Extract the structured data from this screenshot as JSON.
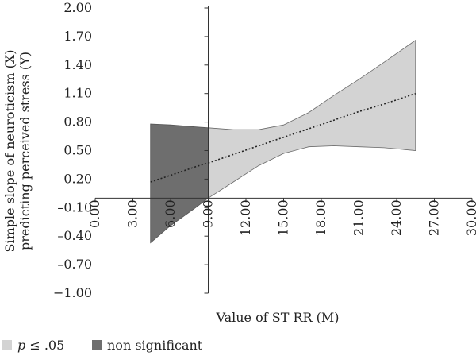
{
  "chart_data": {
    "type": "area",
    "title": "",
    "xlabel": "Value of ST RR (M)",
    "ylabel_lines": [
      "Simple slope of neuroticism (X)",
      "predicting perceived stress (Y)"
    ],
    "xlim": [
      0,
      30
    ],
    "ylim": [
      -1.0,
      2.0
    ],
    "x_ticks": [
      "0.00",
      "3.00",
      "6.00",
      "9.00",
      "12.00",
      "15.00",
      "18.00",
      "21.00",
      "24.00",
      "27.00",
      "30.00"
    ],
    "x_tick_values": [
      0,
      3,
      6,
      9,
      12,
      15,
      18,
      21,
      24,
      27,
      30
    ],
    "y_ticks": [
      "2.00",
      "1.70",
      "1.40",
      "1.10",
      "0.80",
      "0.50",
      "0.20",
      "–0.10",
      "–0.40",
      "–0.70",
      "−1.00"
    ],
    "y_tick_values": [
      2.0,
      1.7,
      1.4,
      1.1,
      0.8,
      0.5,
      0.2,
      -0.1,
      -0.4,
      -0.7,
      -1.0
    ],
    "axis_cross": {
      "x_axis_at_y": 0.0,
      "y_axis_at_x": 9.0
    },
    "x": [
      4.4,
      6,
      8,
      9,
      11,
      13,
      15,
      17,
      19,
      21,
      23,
      25.5
    ],
    "series": [
      {
        "role": "estimate",
        "style": "dotted",
        "color": "#222222",
        "values": [
          0.17,
          0.24,
          0.33,
          0.37,
          0.46,
          0.55,
          0.64,
          0.73,
          0.82,
          0.91,
          0.99,
          1.1
        ]
      },
      {
        "role": "upper_bound",
        "values": [
          0.78,
          0.77,
          0.75,
          0.74,
          0.72,
          0.72,
          0.77,
          0.9,
          1.08,
          1.25,
          1.43,
          1.66
        ]
      },
      {
        "role": "lower_bound",
        "values": [
          -0.47,
          -0.29,
          -0.1,
          0.0,
          0.17,
          0.34,
          0.47,
          0.54,
          0.55,
          0.54,
          0.53,
          0.5
        ]
      }
    ],
    "significance_threshold_x": 9.0,
    "legend": {
      "position": "bottom-left",
      "items": [
        {
          "label_italic": "p",
          "label_rest": " ≤ .05",
          "color": "#d3d3d3"
        },
        {
          "label": "non significant",
          "color": "#6e6e6e"
        }
      ]
    }
  }
}
